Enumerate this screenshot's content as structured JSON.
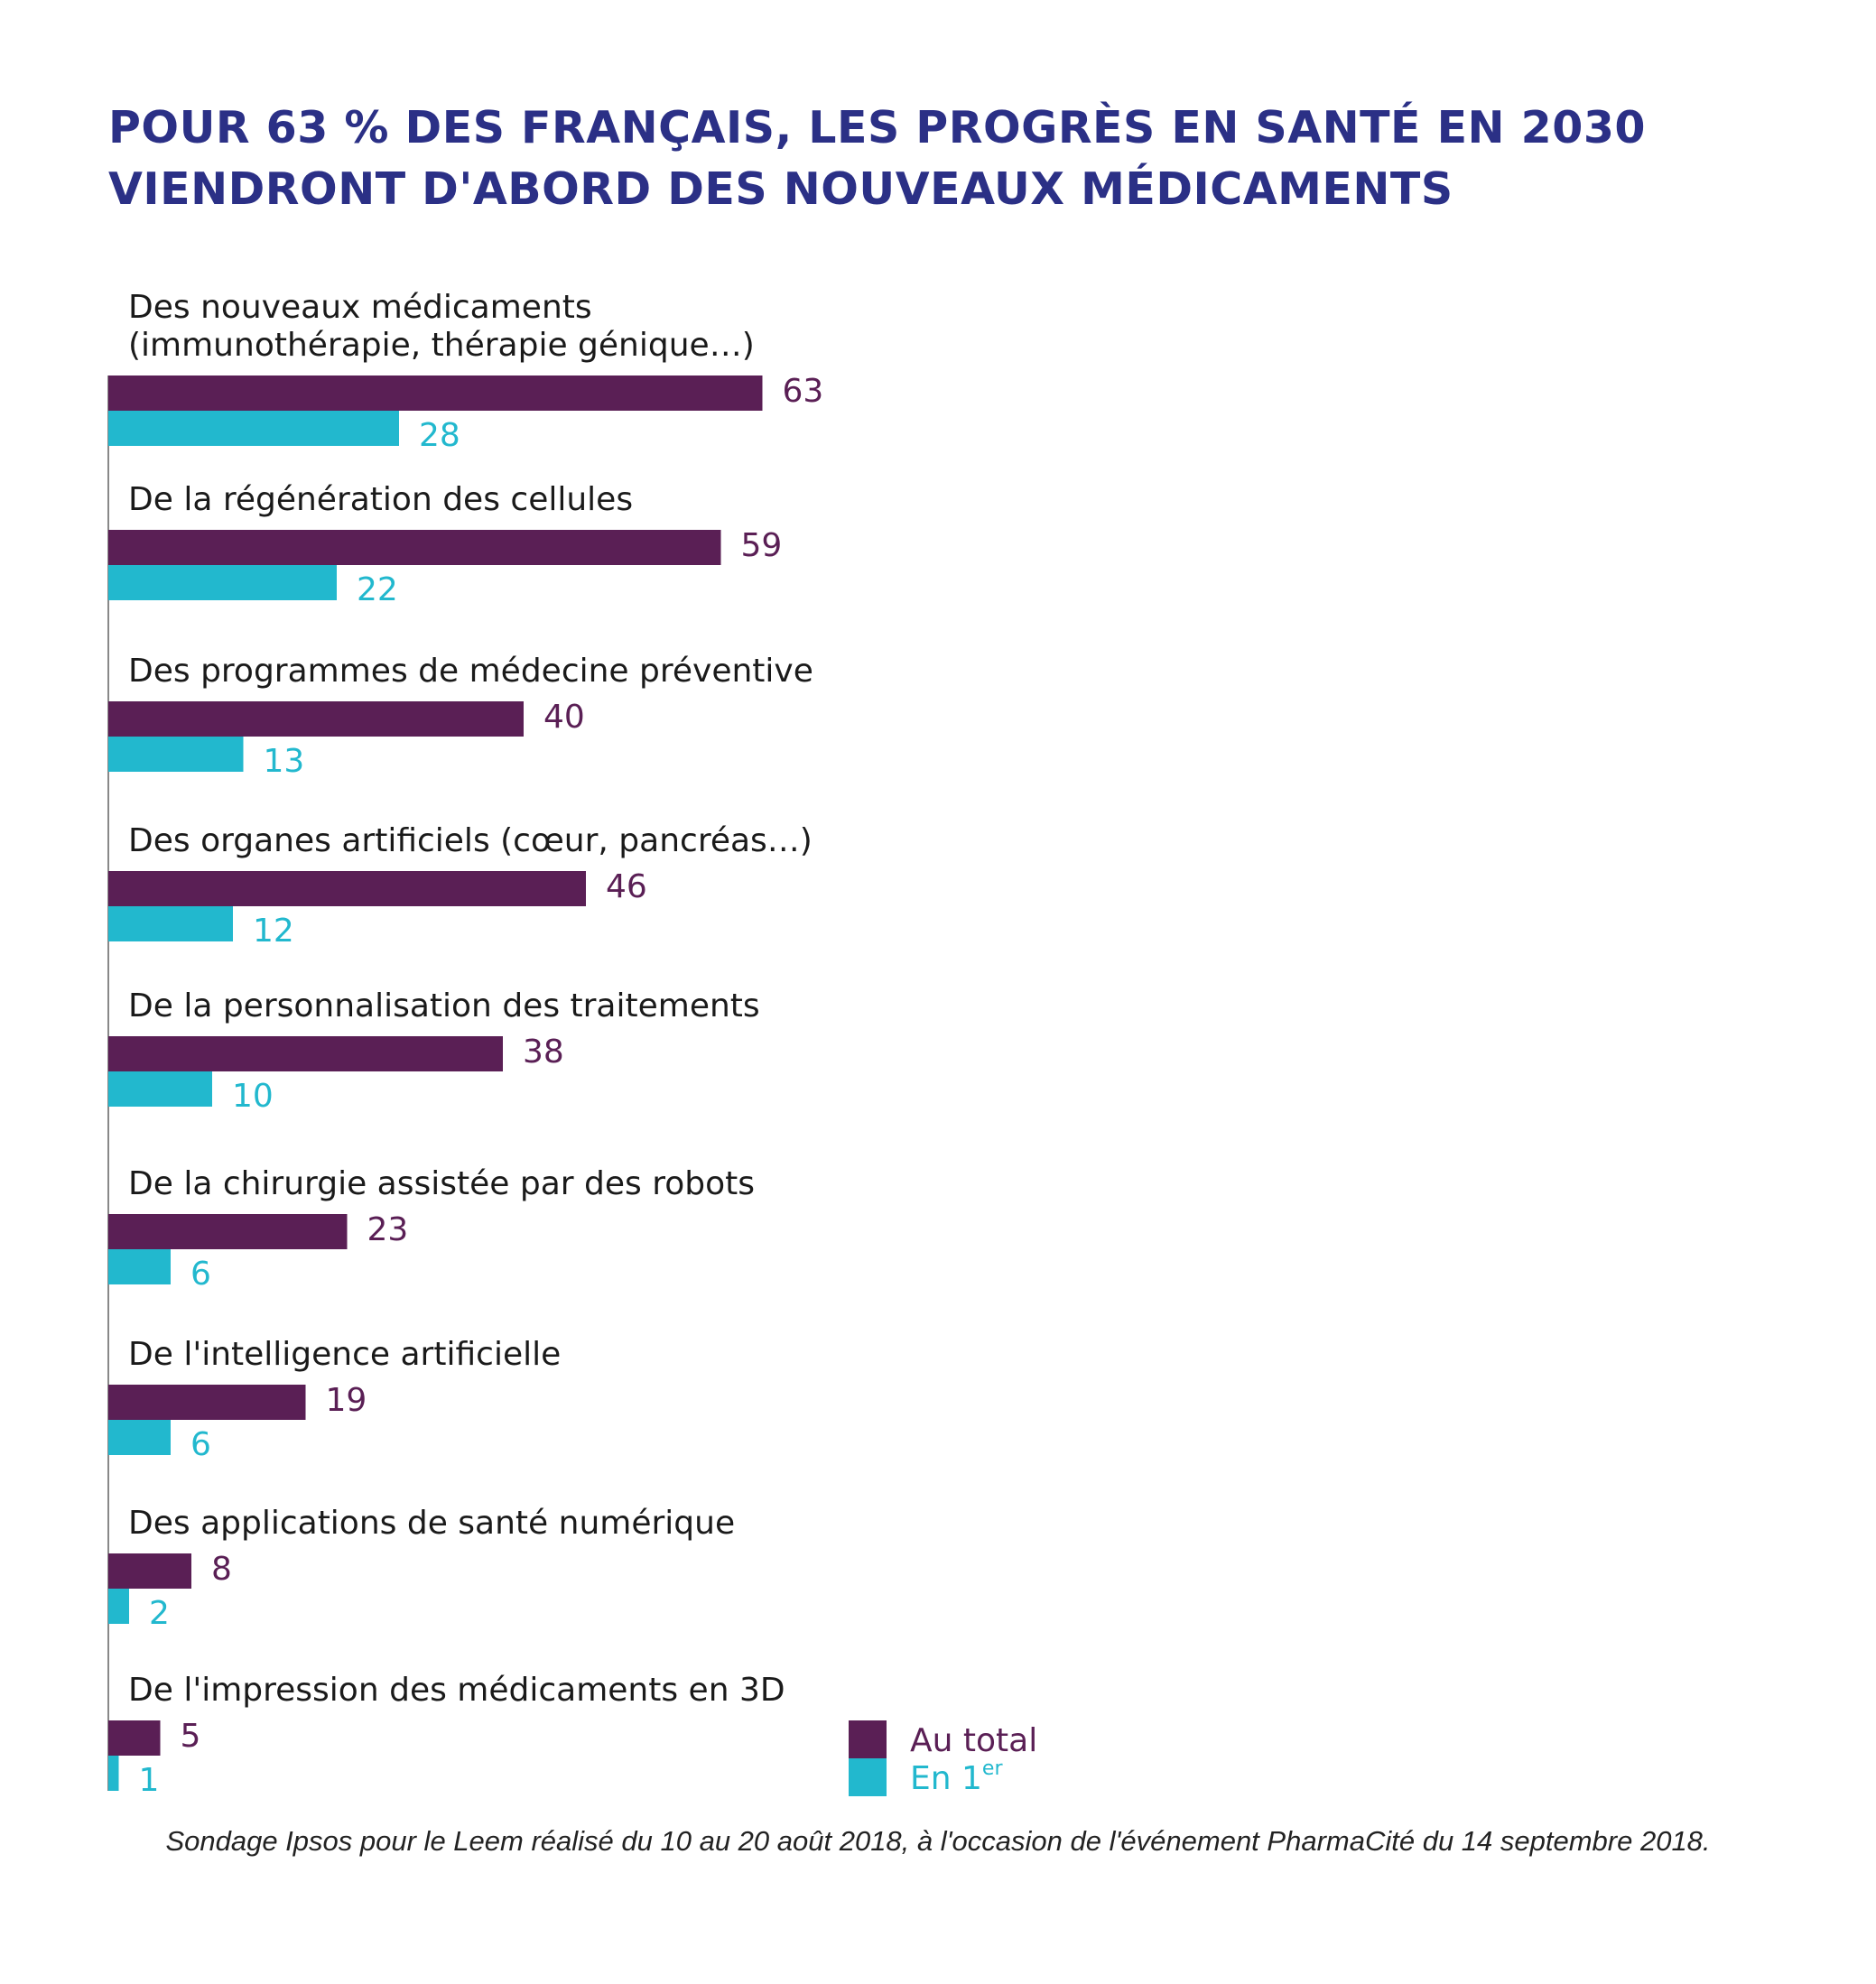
{
  "title": {
    "line1": "POUR 63 % DES FRANÇAIS, LES PROGRÈS EN SANTÉ EN 2030",
    "line2": "VIENDRONT D'ABORD DES NOUVEAUX MÉDICAMENTS"
  },
  "footnote": "Sondage Ipsos pour le Leem réalisé du 10 au 20 août 2018, à l'occasion de l'événement PharmaCité du 14 septembre 2018.",
  "colors": {
    "total": "#5a1f55",
    "first": "#22b8ce",
    "axis": "#888888",
    "label": "#1a1a1a",
    "title": "#2b3086"
  },
  "chart_data": {
    "type": "bar",
    "orientation": "horizontal",
    "title": "POUR 63 % DES FRANÇAIS, LES PROGRÈS EN SANTÉ EN 2030 VIENDRONT D'ABORD DES NOUVEAUX MÉDICAMENTS",
    "categories": [
      [
        "Des nouveaux médicaments",
        "(immunothérapie, thérapie génique…)"
      ],
      [
        "De la régénération des cellules"
      ],
      [
        "Des programmes de médecine préventive"
      ],
      [
        "Des organes artificiels (cœur, pancréas…)"
      ],
      [
        "De la personnalisation des traitements"
      ],
      [
        "De la chirurgie assistée par des robots"
      ],
      [
        "De l'intelligence artificielle"
      ],
      [
        "Des applications de santé numérique"
      ],
      [
        "De l'impression des médicaments en 3D"
      ]
    ],
    "series": [
      {
        "name": "Au total",
        "values": [
          63,
          59,
          40,
          46,
          38,
          23,
          19,
          8,
          5
        ]
      },
      {
        "name": "En 1",
        "name_sup": "er",
        "values": [
          28,
          22,
          13,
          12,
          10,
          6,
          6,
          2,
          1
        ]
      }
    ],
    "xlim": [
      0,
      100
    ],
    "grid": false,
    "legend": "bottom-right"
  }
}
